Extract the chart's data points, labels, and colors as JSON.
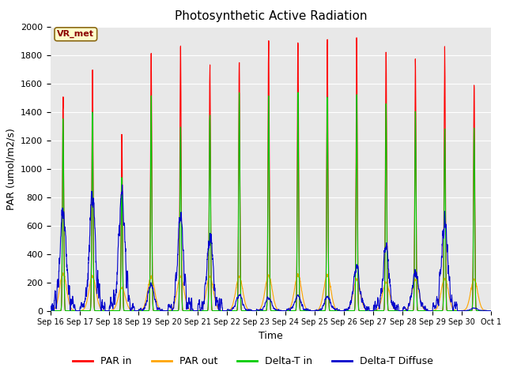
{
  "title": "Photosynthetic Active Radiation",
  "ylabel": "PAR (umol/m2/s)",
  "xlabel": "Time",
  "ylim": [
    0,
    2000
  ],
  "annotation": "VR_met",
  "legend": [
    "PAR in",
    "PAR out",
    "Delta-T in",
    "Delta-T Diffuse"
  ],
  "colors": {
    "PAR in": "#ff0000",
    "PAR out": "#ffa500",
    "Delta-T in": "#00cc00",
    "Delta-T Diffuse": "#0000cc"
  },
  "x_tick_labels": [
    "Sep 16",
    "Sep 17",
    "Sep 18",
    "Sep 19",
    "Sep 20",
    "Sep 21",
    "Sep 22",
    "Sep 23",
    "Sep 24",
    "Sep 25",
    "Sep 26",
    "Sep 27",
    "Sep 28",
    "Sep 29",
    "Sep 30",
    "Oct 1"
  ],
  "background_color": "#e8e8e8",
  "figure_color": "#ffffff",
  "num_days": 15,
  "day_peaks": {
    "PAR_in": [
      1500,
      1730,
      1230,
      1790,
      1860,
      1700,
      1760,
      1920,
      1920,
      1880,
      1890,
      1810,
      1750,
      1800,
      1590
    ],
    "PAR_out": [
      260,
      240,
      160,
      240,
      240,
      240,
      240,
      250,
      250,
      250,
      220,
      200,
      220,
      230,
      220
    ],
    "DeltaT_in": [
      1320,
      1420,
      940,
      1480,
      1310,
      1410,
      1540,
      1530,
      1510,
      1510,
      1510,
      1440,
      1430,
      1270,
      1270
    ],
    "DeltaT_diff": [
      750,
      770,
      810,
      180,
      640,
      520,
      110,
      90,
      110,
      100,
      310,
      460,
      270,
      610,
      20
    ]
  }
}
